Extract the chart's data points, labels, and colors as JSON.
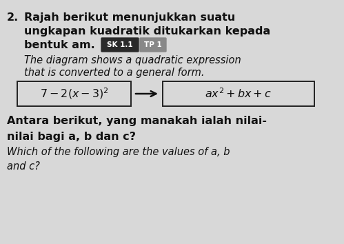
{
  "bg_color": "#d8d8d8",
  "question_number": "2.",
  "line1": "Rajah berikut menunjukkan suatu",
  "line2": "ungkapan kuadratik ditukarkan kepada",
  "line3_pre": "bentuk am.",
  "sk_label": "SK 1.1",
  "tp_label": "TP 1",
  "line4": "The diagram shows a quadratic expression",
  "line5": "that is converted to a general form.",
  "box_left": "$7 - 2(x - 3)^2$",
  "box_right": "$ax^2 + bx + c$",
  "bottom1": "Antara berikut, yang manakah ialah nilai-",
  "bottom2": "nilai bagi a, b dan c?",
  "bottom3": "Which of the following are the values of a, b",
  "bottom4": "and c?",
  "text_color": "#111111",
  "box_border_color": "#222222",
  "arrow_color": "#111111",
  "sk_bg": "#2a2a2a",
  "tp_bg": "#888888"
}
